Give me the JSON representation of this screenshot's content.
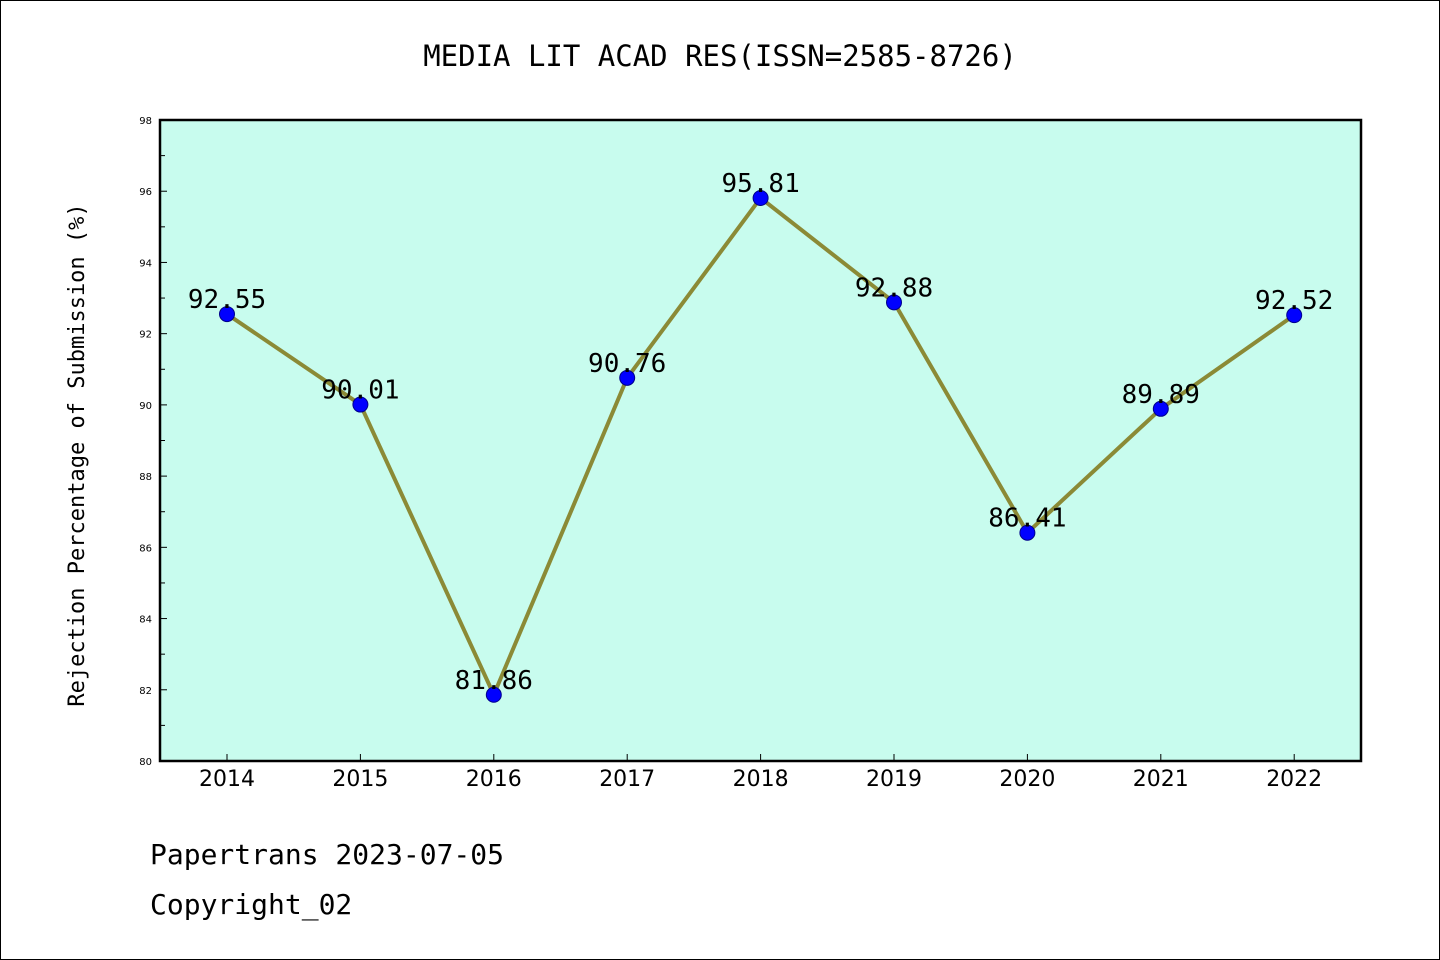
{
  "colors": {
    "plot_background": "#c8fcee",
    "line": "#8b8a36",
    "marker_fill": "#0000ff",
    "marker_edge": "#00008b",
    "axes": "#000000"
  },
  "chart_data": {
    "type": "line",
    "title": "MEDIA LIT ACAD RES(ISSN=2585-8726)",
    "xlabel": "",
    "ylabel": "Rejection Percentage of Submission (%)",
    "categories": [
      "2014",
      "2015",
      "2016",
      "2017",
      "2018",
      "2019",
      "2020",
      "2021",
      "2022"
    ],
    "series": [
      {
        "values": [
          92.55,
          90.01,
          81.86,
          90.76,
          95.81,
          92.88,
          86.41,
          89.89,
          92.52
        ],
        "labels": [
          "92.55",
          "90.01",
          "81.86",
          "90.76",
          "95.81",
          "92.88",
          "86.41",
          "89.89",
          "92.52"
        ]
      }
    ],
    "ylim": [
      80,
      98
    ],
    "yticks": [
      "80",
      "82",
      "84",
      "86",
      "88",
      "90",
      "92",
      "94",
      "96",
      "98"
    ],
    "grid": false,
    "legend": "none"
  },
  "footer": {
    "source": "Papertrans 2023-07-05",
    "copyright": "Copyright_02"
  }
}
